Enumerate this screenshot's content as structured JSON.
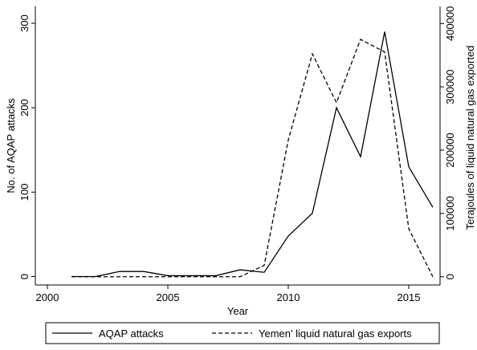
{
  "chart_data": {
    "type": "line",
    "x_label": "Year",
    "y_label": "No. of AQAP attacks",
    "y2_label": "Terajoules of liquid natural gas exported",
    "x": [
      2001,
      2002,
      2003,
      2004,
      2005,
      2006,
      2007,
      2008,
      2009,
      2010,
      2011,
      2012,
      2013,
      2014,
      2015,
      2016
    ],
    "series": [
      {
        "name": "AQAP attacks",
        "color": "#000000",
        "style": "solid",
        "axis": "y",
        "values": [
          0,
          0,
          6,
          6,
          1,
          1,
          1,
          8,
          5,
          48,
          75,
          200,
          142,
          290,
          130,
          82
        ]
      },
      {
        "name": "Yemen' liquid natural gas exports",
        "color": "#000000",
        "style": "dashed",
        "axis": "y2",
        "values": [
          0,
          0,
          0,
          0,
          0,
          0,
          0,
          0,
          18000,
          216000,
          352000,
          275000,
          375000,
          355000,
          76000,
          0
        ]
      }
    ],
    "xlim": [
      1999.5,
      2016.3
    ],
    "xticks": [
      2000,
      2005,
      2010,
      2015
    ],
    "ylim": [
      -10,
      320
    ],
    "yticks": [
      0,
      100,
      200,
      300
    ],
    "y2lim": [
      -13000,
      427000
    ],
    "y2ticks": [
      0,
      100000,
      200000,
      300000,
      400000
    ],
    "legend": "bottom"
  }
}
